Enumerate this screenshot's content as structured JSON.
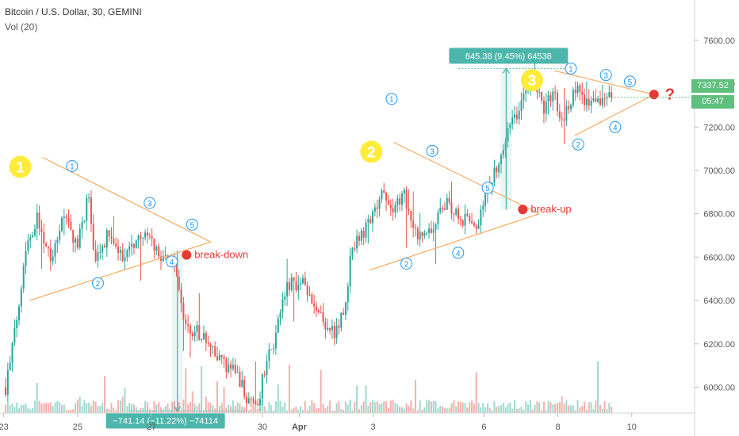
{
  "header": {
    "title": "Bitcoin / U.S. Dollar, 30, GEMINI",
    "volume_label": "Vol (20)"
  },
  "price_badge": "7337.52",
  "countdown_badge": "05:47",
  "colors": {
    "up": "#26a69a",
    "down": "#ef5350",
    "upVol": "#9fd9cf",
    "downVol": "#f4b1ac",
    "trend": "#f6b26b",
    "marker": "#2196f3",
    "dot": "#e53935",
    "badge": "#ffeb3b",
    "measure": "#4db6ac"
  },
  "chart_data": {
    "type": "candlestick",
    "ylim": [
      5850,
      7750
    ],
    "yticks": [
      "7600.00",
      "7400.00",
      "7200.00",
      "7000.00",
      "6800.00",
      "6600.00",
      "6400.00",
      "6200.00",
      "6000.00"
    ],
    "xticks": [
      {
        "label": "23",
        "x": 0
      },
      {
        "label": "25",
        "x": 2
      },
      {
        "label": "27",
        "x": 4
      },
      {
        "label": "30",
        "x": 7
      },
      {
        "label": "Apr",
        "x": 8
      },
      {
        "label": "3",
        "x": 10
      },
      {
        "label": "6",
        "x": 13
      },
      {
        "label": "8",
        "x": 15
      },
      {
        "label": "10",
        "x": 17
      }
    ],
    "price_path": [
      [
        0.05,
        6000
      ],
      [
        0.3,
        6250
      ],
      [
        0.6,
        6650
      ],
      [
        0.9,
        6780
      ],
      [
        1.3,
        6600
      ],
      [
        1.6,
        6800
      ],
      [
        2.0,
        6650
      ],
      [
        2.3,
        6900
      ],
      [
        2.45,
        6550
      ],
      [
        2.8,
        6700
      ],
      [
        3.2,
        6600
      ],
      [
        3.7,
        6700
      ],
      [
        4.0,
        6680
      ],
      [
        4.2,
        6600
      ],
      [
        4.55,
        6600
      ],
      [
        4.9,
        6280
      ],
      [
        5.3,
        6250
      ],
      [
        5.7,
        6150
      ],
      [
        6.0,
        6100
      ],
      [
        6.35,
        6050
      ],
      [
        6.6,
        5950
      ],
      [
        6.9,
        5900
      ],
      [
        7.0,
        6050
      ],
      [
        7.3,
        6200
      ],
      [
        7.7,
        6480
      ],
      [
        8.1,
        6480
      ],
      [
        8.4,
        6350
      ],
      [
        8.7,
        6300
      ],
      [
        9.0,
        6250
      ],
      [
        9.2,
        6350
      ],
      [
        9.4,
        6600
      ],
      [
        9.6,
        6680
      ],
      [
        10.0,
        6780
      ],
      [
        10.3,
        6920
      ],
      [
        10.55,
        6800
      ],
      [
        10.8,
        6900
      ],
      [
        11.2,
        6700
      ],
      [
        11.6,
        6730
      ],
      [
        12.0,
        6850
      ],
      [
        12.4,
        6780
      ],
      [
        12.8,
        6750
      ],
      [
        13.0,
        6850
      ],
      [
        13.3,
        7000
      ],
      [
        13.7,
        7200
      ],
      [
        14.0,
        7300
      ],
      [
        14.3,
        7420
      ],
      [
        14.6,
        7280
      ],
      [
        14.9,
        7380
      ],
      [
        15.1,
        7200
      ],
      [
        15.3,
        7320
      ],
      [
        15.5,
        7380
      ],
      [
        15.8,
        7320
      ],
      [
        16.0,
        7300
      ],
      [
        16.3,
        7350
      ],
      [
        16.45,
        7337
      ]
    ],
    "triangles": [
      {
        "label": "1",
        "upper": [
          [
            1.05,
            7060
          ],
          [
            5.6,
            6670
          ]
        ],
        "lower": [
          [
            0.7,
            6400
          ],
          [
            5.6,
            6670
          ]
        ],
        "pivots": [
          {
            "n": "1",
            "x": 1.85,
            "y": 7020
          },
          {
            "n": "2",
            "x": 2.55,
            "y": 6480
          },
          {
            "n": "3",
            "x": 3.95,
            "y": 6850
          },
          {
            "n": "4",
            "x": 4.55,
            "y": 6580
          },
          {
            "n": "5",
            "x": 5.1,
            "y": 6750
          }
        ],
        "breakout_label": "break-down",
        "breakout": [
          4.95,
          6610
        ]
      },
      {
        "label": "2",
        "upper": [
          [
            10.55,
            7130
          ],
          [
            14.5,
            6800
          ]
        ],
        "lower": [
          [
            9.9,
            6540
          ],
          [
            14.5,
            6800
          ]
        ],
        "pivots": [
          {
            "n": "1",
            "x": 10.5,
            "y": 7330
          },
          {
            "n": "2",
            "x": 10.9,
            "y": 6570
          },
          {
            "n": "3",
            "x": 11.6,
            "y": 7090
          },
          {
            "n": "4",
            "x": 12.3,
            "y": 6620
          },
          {
            "n": "5",
            "x": 13.1,
            "y": 6920
          }
        ],
        "breakout_label": "break-up",
        "breakout": [
          14.05,
          6820
        ]
      },
      {
        "label": "3",
        "upper": [
          [
            14.9,
            7460
          ],
          [
            17.6,
            7350
          ]
        ],
        "lower": [
          [
            15.45,
            7160
          ],
          [
            17.6,
            7350
          ]
        ],
        "pivots": [
          {
            "n": "1",
            "x": 15.35,
            "y": 7470
          },
          {
            "n": "2",
            "x": 15.55,
            "y": 7120
          },
          {
            "n": "3",
            "x": 16.3,
            "y": 7440
          },
          {
            "n": "4",
            "x": 16.55,
            "y": 7200
          },
          {
            "n": "5",
            "x": 16.95,
            "y": 7410
          }
        ],
        "breakout_label": "?",
        "breakout": [
          17.6,
          7350
        ]
      }
    ],
    "measurements": [
      {
        "text": "645.38 (9.45%) 64538",
        "from": [
          13.6,
          6820
        ],
        "to": [
          13.6,
          7470
        ],
        "side": "up"
      },
      {
        "text": "−741.14 (−11.22%) −74114",
        "from": [
          4.7,
          6630
        ],
        "to": [
          4.7,
          5890
        ],
        "side": "down"
      }
    ]
  }
}
